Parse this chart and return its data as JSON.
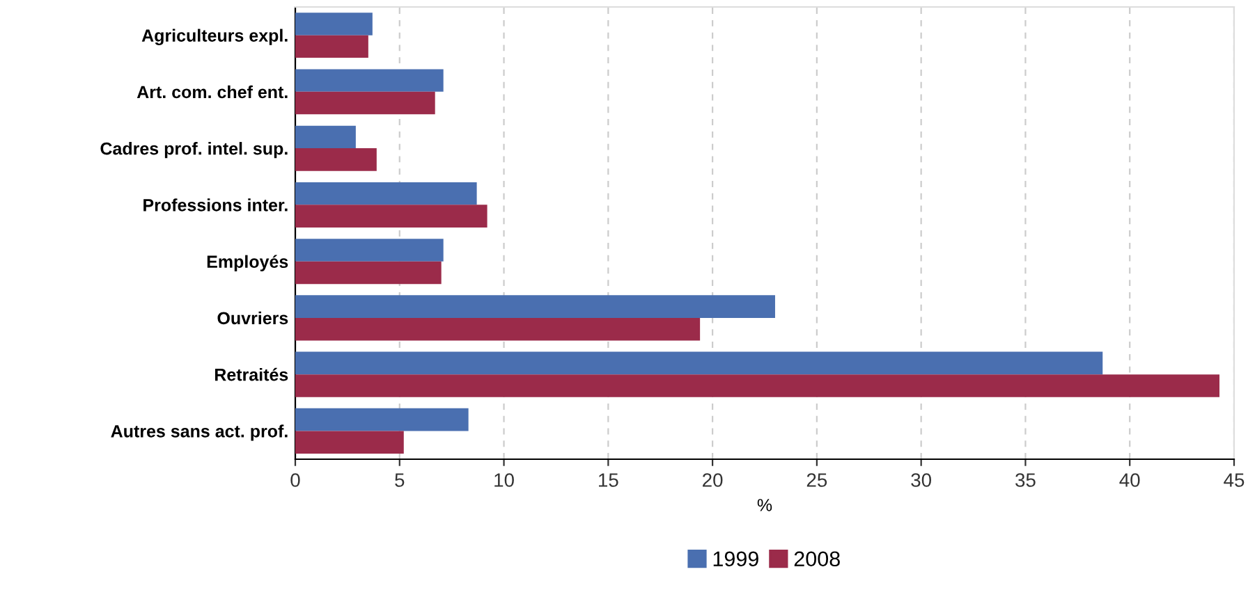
{
  "chart_data": {
    "type": "bar",
    "orientation": "horizontal",
    "xlabel": "%",
    "categories": [
      "Agriculteurs expl.",
      "Art. com. chef ent.",
      "Cadres prof. intel. sup.",
      "Professions inter.",
      "Employés",
      "Ouvriers",
      "Retraités",
      "Autres sans act. prof."
    ],
    "series": [
      {
        "name": "1999",
        "color": "#4a6fb0",
        "values": [
          3.7,
          7.1,
          2.9,
          8.7,
          7.1,
          23.0,
          38.7,
          8.3
        ]
      },
      {
        "name": "2008",
        "color": "#9b2b4a",
        "values": [
          3.5,
          6.7,
          3.9,
          9.2,
          7.0,
          19.4,
          44.3,
          5.2
        ]
      }
    ],
    "xlim": [
      0,
      45
    ],
    "xticks": [
      0,
      5,
      10,
      15,
      20,
      25,
      30,
      35,
      40,
      45
    ],
    "grid": "x",
    "legend": "bottom"
  }
}
